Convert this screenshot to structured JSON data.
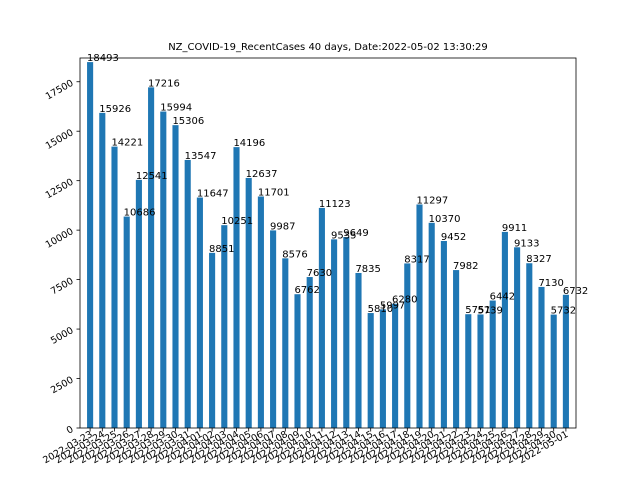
{
  "chart_data": {
    "type": "bar",
    "title": "NZ_COVID-19_RecentCases 40 days,  Date:2022-05-02 13:30:29",
    "xlabel": "",
    "ylabel": "",
    "ylim": [
      0,
      18700
    ],
    "yticks": [
      0,
      2500,
      5000,
      7500,
      10000,
      12500,
      15000,
      17500
    ],
    "grid": false,
    "legend": "none",
    "bar_color": "#1f77b4",
    "categories": [
      "2022-03-23",
      "2022-03-24",
      "2022-03-25",
      "2022-03-26",
      "2022-03-27",
      "2022-03-28",
      "2022-03-29",
      "2022-03-30",
      "2022-03-31",
      "2022-04-01",
      "2022-04-02",
      "2022-04-03",
      "2022-04-04",
      "2022-04-05",
      "2022-04-06",
      "2022-04-07",
      "2022-04-08",
      "2022-04-09",
      "2022-04-10",
      "2022-04-11",
      "2022-04-12",
      "2022-04-13",
      "2022-04-14",
      "2022-04-15",
      "2022-04-16",
      "2022-04-17",
      "2022-04-18",
      "2022-04-19",
      "2022-04-20",
      "2022-04-21",
      "2022-04-22",
      "2022-04-23",
      "2022-04-24",
      "2022-04-25",
      "2022-04-26",
      "2022-04-27",
      "2022-04-28",
      "2022-04-29",
      "2022-04-30",
      "2022-05-01"
    ],
    "values": [
      18493,
      15926,
      14221,
      10686,
      12541,
      17216,
      15994,
      15306,
      13547,
      11647,
      8851,
      10251,
      14196,
      12637,
      11701,
      9987,
      8576,
      6762,
      7630,
      11123,
      9535,
      9649,
      7835,
      5810,
      5997,
      6280,
      8317,
      11297,
      10370,
      9452,
      7982,
      5751,
      5739,
      6442,
      9911,
      9133,
      8327,
      7130,
      5732,
      6732
    ]
  }
}
